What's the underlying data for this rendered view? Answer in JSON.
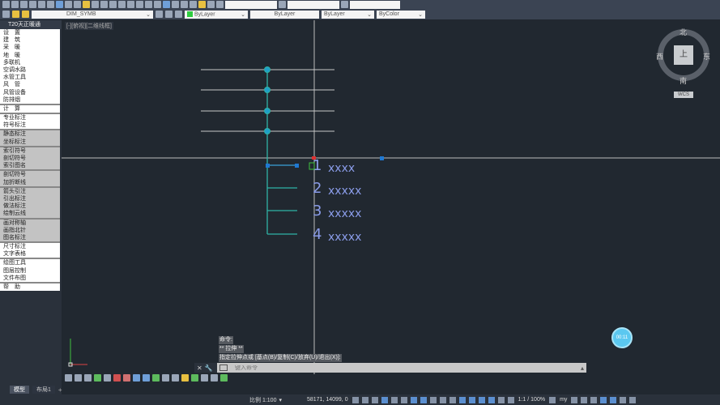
{
  "toolbar": {
    "layer": "DIM_SYMB",
    "color": "ByLayer",
    "linetype": "ByLayer",
    "lineweight": "ByLayer",
    "plotstyle": "ByColor"
  },
  "sidebar": {
    "title": "T20天正暖通",
    "groups": [
      {
        "style": "w",
        "items": [
          "设　置",
          "建　筑",
          "采　暖",
          "地　暖",
          "多联机",
          "空调水路",
          "水管工具",
          "风　管",
          "风管设备",
          "防排烟"
        ]
      },
      {
        "style": "w",
        "items": [
          "计　算"
        ]
      },
      {
        "style": "w",
        "items": [
          "专业标注",
          "符号标注"
        ]
      },
      {
        "style": "g",
        "items": [
          "静态标注",
          "坐标标注"
        ]
      },
      {
        "style": "g",
        "items": [
          "索引符号",
          "剖切符号",
          "索引图名"
        ]
      },
      {
        "style": "g",
        "items": [
          "剖切符号",
          "加折断线"
        ]
      },
      {
        "style": "g",
        "items": [
          "箭头引注",
          "引出标注",
          "做法标注",
          "绘制云线"
        ]
      },
      {
        "style": "g",
        "items": [
          "画对称轴",
          "画指北针",
          "图名标注"
        ]
      },
      {
        "style": "w",
        "items": [
          "尺寸标注",
          "文字表格"
        ]
      },
      {
        "style": "w",
        "items": [
          "绘图工具",
          "图层控制",
          "文件布图"
        ]
      },
      {
        "style": "w",
        "items": [
          "帮　助"
        ]
      }
    ]
  },
  "viewport": {
    "label": "[-][俯视][二维线框]"
  },
  "drawing": {
    "labels": [
      {
        "num": "1",
        "text": "xxxx"
      },
      {
        "num": "2",
        "text": "xxxxx"
      },
      {
        "num": "3",
        "text": "xxxxx"
      },
      {
        "num": "4",
        "text": "xxxxx"
      }
    ],
    "colors": {
      "leader": "#2fb3a6",
      "text": "#8a9ce8",
      "grip": "#1f78d1"
    }
  },
  "viewcube": {
    "north": "北",
    "south": "南",
    "east": "东",
    "west": "西",
    "top": "上",
    "wcs": "WCS"
  },
  "command": {
    "history": [
      "命令:",
      "** 拉伸 **",
      "指定拉伸点或 [基点(B)/复制(C)/放弃(U)/退出(X)]:"
    ],
    "placeholder": "键入命令"
  },
  "fab": {
    "label": "00:11"
  },
  "tabs": [
    "模型",
    "布局1"
  ],
  "status": {
    "scale": "比例 1:100",
    "coords": "58171, 14099, 0",
    "annoscale": "1:1 / 100%",
    "workspace": "my"
  }
}
